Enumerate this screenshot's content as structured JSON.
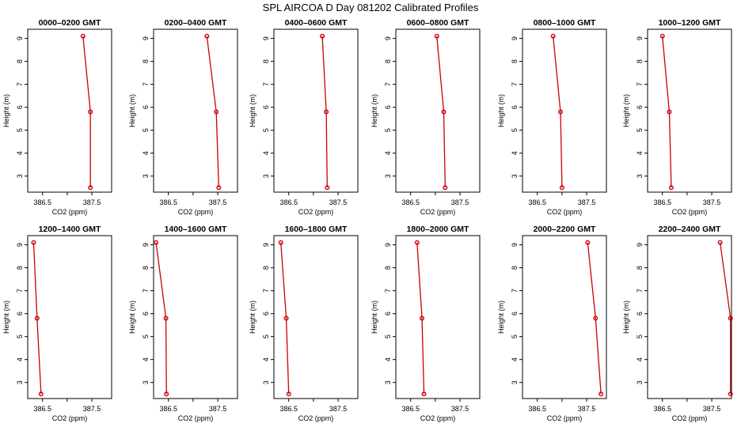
{
  "figure": {
    "title": "SPL AIRCOA D  Day 081202  Calibrated Profiles"
  },
  "chart_data": [
    {
      "type": "line",
      "title": "0000–0200 GMT",
      "xlabel": "CO2 (ppm)",
      "ylabel": "Height (m)",
      "xlim": [
        386.2,
        387.9
      ],
      "ylim": [
        2.3,
        9.4
      ],
      "xticks": [
        386.5,
        387.5
      ],
      "x_minor": [
        387.0
      ],
      "yticks": [
        3,
        4,
        5,
        6,
        7,
        8,
        9
      ],
      "grid": false,
      "series": [
        {
          "x": [
            387.32,
            387.47,
            387.47
          ],
          "y": [
            9.1,
            5.8,
            2.5
          ],
          "color": "#cc0000"
        }
      ]
    },
    {
      "type": "line",
      "title": "0200–0400 GMT",
      "xlabel": "CO2 (ppm)",
      "ylabel": "Height (m)",
      "xlim": [
        386.2,
        387.9
      ],
      "ylim": [
        2.3,
        9.4
      ],
      "xticks": [
        386.5,
        387.5
      ],
      "x_minor": [
        387.0
      ],
      "yticks": [
        3,
        4,
        5,
        6,
        7,
        8,
        9
      ],
      "grid": false,
      "series": [
        {
          "x": [
            387.28,
            387.47,
            387.52
          ],
          "y": [
            9.1,
            5.8,
            2.5
          ],
          "color": "#cc0000"
        }
      ]
    },
    {
      "type": "line",
      "title": "0400–0600 GMT",
      "xlabel": "CO2 (ppm)",
      "ylabel": "Height (m)",
      "xlim": [
        386.2,
        387.9
      ],
      "ylim": [
        2.3,
        9.4
      ],
      "xticks": [
        386.5,
        387.5
      ],
      "x_minor": [
        387.0
      ],
      "yticks": [
        3,
        4,
        5,
        6,
        7,
        8,
        9
      ],
      "grid": false,
      "series": [
        {
          "x": [
            387.18,
            387.26,
            387.28
          ],
          "y": [
            9.1,
            5.8,
            2.5
          ],
          "color": "#cc0000"
        }
      ]
    },
    {
      "type": "line",
      "title": "0600–0800 GMT",
      "xlabel": "CO2 (ppm)",
      "ylabel": "Height (m)",
      "xlim": [
        386.2,
        387.9
      ],
      "ylim": [
        2.3,
        9.4
      ],
      "xticks": [
        386.5,
        387.5
      ],
      "x_minor": [
        387.0
      ],
      "yticks": [
        3,
        4,
        5,
        6,
        7,
        8,
        9
      ],
      "grid": false,
      "series": [
        {
          "x": [
            387.03,
            387.17,
            387.2
          ],
          "y": [
            9.1,
            5.8,
            2.5
          ],
          "color": "#cc0000"
        }
      ]
    },
    {
      "type": "line",
      "title": "0800–1000 GMT",
      "xlabel": "CO2 (ppm)",
      "ylabel": "Height (m)",
      "xlim": [
        386.2,
        387.9
      ],
      "ylim": [
        2.3,
        9.4
      ],
      "xticks": [
        386.5,
        387.5
      ],
      "x_minor": [
        387.0
      ],
      "yticks": [
        3,
        4,
        5,
        6,
        7,
        8,
        9
      ],
      "grid": false,
      "series": [
        {
          "x": [
            386.82,
            386.97,
            387.0
          ],
          "y": [
            9.1,
            5.8,
            2.5
          ],
          "color": "#cc0000"
        }
      ]
    },
    {
      "type": "line",
      "title": "1000–1200 GMT",
      "xlabel": "CO2 (ppm)",
      "ylabel": "Height (m)",
      "xlim": [
        386.2,
        387.9
      ],
      "ylim": [
        2.3,
        9.4
      ],
      "xticks": [
        386.5,
        387.5
      ],
      "x_minor": [
        387.0
      ],
      "yticks": [
        3,
        4,
        5,
        6,
        7,
        8,
        9
      ],
      "grid": false,
      "series": [
        {
          "x": [
            386.5,
            386.64,
            386.68
          ],
          "y": [
            9.1,
            5.8,
            2.5
          ],
          "color": "#cc0000"
        }
      ]
    },
    {
      "type": "line",
      "title": "1200–1400 GMT",
      "xlabel": "CO2 (ppm)",
      "ylabel": "Height (m)",
      "xlim": [
        386.2,
        387.9
      ],
      "ylim": [
        2.3,
        9.4
      ],
      "xticks": [
        386.5,
        387.5
      ],
      "x_minor": [
        387.0
      ],
      "yticks": [
        3,
        4,
        5,
        6,
        7,
        8,
        9
      ],
      "grid": false,
      "series": [
        {
          "x": [
            386.32,
            386.39,
            386.47
          ],
          "y": [
            9.1,
            5.8,
            2.5
          ],
          "color": "#cc0000"
        }
      ]
    },
    {
      "type": "line",
      "title": "1400–1600 GMT",
      "xlabel": "CO2 (ppm)",
      "ylabel": "Height (m)",
      "xlim": [
        386.2,
        387.9
      ],
      "ylim": [
        2.3,
        9.4
      ],
      "xticks": [
        386.5,
        387.5
      ],
      "x_minor": [
        387.0
      ],
      "yticks": [
        3,
        4,
        5,
        6,
        7,
        8,
        9
      ],
      "grid": false,
      "series": [
        {
          "x": [
            386.25,
            386.45,
            386.46
          ],
          "y": [
            9.1,
            5.8,
            2.5
          ],
          "color": "#cc0000"
        }
      ]
    },
    {
      "type": "line",
      "title": "1600–1800 GMT",
      "xlabel": "CO2 (ppm)",
      "ylabel": "Height (m)",
      "xlim": [
        386.2,
        387.9
      ],
      "ylim": [
        2.3,
        9.4
      ],
      "xticks": [
        386.5,
        387.5
      ],
      "x_minor": [
        387.0
      ],
      "yticks": [
        3,
        4,
        5,
        6,
        7,
        8,
        9
      ],
      "grid": false,
      "series": [
        {
          "x": [
            386.34,
            386.45,
            386.5
          ],
          "y": [
            9.1,
            5.8,
            2.5
          ],
          "color": "#cc0000"
        }
      ]
    },
    {
      "type": "line",
      "title": "1800–2000 GMT",
      "xlabel": "CO2 (ppm)",
      "ylabel": "Height (m)",
      "xlim": [
        386.2,
        387.9
      ],
      "ylim": [
        2.3,
        9.4
      ],
      "xticks": [
        386.5,
        387.5
      ],
      "x_minor": [
        387.0
      ],
      "yticks": [
        3,
        4,
        5,
        6,
        7,
        8,
        9
      ],
      "grid": false,
      "series": [
        {
          "x": [
            386.63,
            386.73,
            386.77
          ],
          "y": [
            9.1,
            5.8,
            2.5
          ],
          "color": "#cc0000"
        }
      ]
    },
    {
      "type": "line",
      "title": "2000–2200 GMT",
      "xlabel": "CO2 (ppm)",
      "ylabel": "Height (m)",
      "xlim": [
        386.2,
        387.9
      ],
      "ylim": [
        2.3,
        9.4
      ],
      "xticks": [
        386.5,
        387.5
      ],
      "x_minor": [
        387.0
      ],
      "yticks": [
        3,
        4,
        5,
        6,
        7,
        8,
        9
      ],
      "grid": false,
      "series": [
        {
          "x": [
            387.52,
            387.68,
            387.79
          ],
          "y": [
            9.1,
            5.8,
            2.5
          ],
          "color": "#cc0000"
        }
      ]
    },
    {
      "type": "line",
      "title": "2200–2400 GMT",
      "xlabel": "CO2 (ppm)",
      "ylabel": "Height (m)",
      "xlim": [
        386.2,
        387.9
      ],
      "ylim": [
        2.3,
        9.4
      ],
      "xticks": [
        386.5,
        387.5
      ],
      "x_minor": [
        387.0
      ],
      "yticks": [
        3,
        4,
        5,
        6,
        7,
        8,
        9
      ],
      "grid": false,
      "series": [
        {
          "x": [
            387.67,
            387.88,
            387.88
          ],
          "y": [
            9.1,
            5.8,
            2.5
          ],
          "color": "#cc0000"
        }
      ]
    }
  ]
}
